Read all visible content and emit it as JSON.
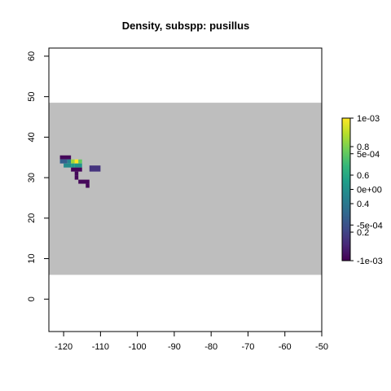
{
  "chart_data": {
    "type": "heatmap",
    "title": "Density, subspp: pusillus",
    "xlabel": "",
    "ylabel": "",
    "xlim": [
      -124,
      -50
    ],
    "ylim": [
      -8,
      62
    ],
    "x_ticks": [
      -120,
      -110,
      -100,
      -90,
      -80,
      -70,
      -60,
      -50
    ],
    "y_ticks": [
      0,
      10,
      20,
      30,
      40,
      50,
      60
    ],
    "x_tick_labels": [
      "-120",
      "-110",
      "-100",
      "-90",
      "-80",
      "-70",
      "-60",
      "-50"
    ],
    "y_tick_labels": [
      "0",
      "10",
      "20",
      "30",
      "40",
      "50",
      "60"
    ],
    "background_region": {
      "x": [
        -124,
        -50
      ],
      "y": [
        6,
        48.5
      ],
      "color": "#bebebe"
    },
    "grid": false,
    "colorscale": "viridis",
    "legend": {
      "position": "right",
      "ticks_left": [
        {
          "value": 0.2,
          "label": "0.2"
        },
        {
          "value": 0.4,
          "label": "0.4"
        },
        {
          "value": 0.6,
          "label": "0.6"
        },
        {
          "value": 0.8,
          "label": "0.8"
        }
      ],
      "ticks_right": [
        {
          "value": -0.001,
          "label": "-1e-03"
        },
        {
          "value": -0.0005,
          "label": "-5e-04"
        },
        {
          "value": 0.0,
          "label": "0e+00"
        },
        {
          "value": 0.0005,
          "label": "5e-04"
        },
        {
          "value": 0.001,
          "label": "1e-03"
        }
      ]
    },
    "cells": [
      {
        "x0": -121,
        "x1": -118,
        "y0": 34.5,
        "y1": 35.5,
        "value": 0.02
      },
      {
        "x0": -121,
        "x1": -119,
        "y0": 33.5,
        "y1": 34.5,
        "value": 0.3
      },
      {
        "x0": -119,
        "x1": -118,
        "y0": 33.5,
        "y1": 34.5,
        "value": 0.45
      },
      {
        "x0": -118,
        "x1": -117,
        "y0": 33.5,
        "y1": 34.5,
        "value": 0.85
      },
      {
        "x0": -117,
        "x1": -116,
        "y0": 33.5,
        "y1": 34.5,
        "value": 1.0
      },
      {
        "x0": -116,
        "x1": -115,
        "y0": 33.5,
        "y1": 34.5,
        "value": 0.75
      },
      {
        "x0": -120,
        "x1": -118,
        "y0": 32.5,
        "y1": 33.5,
        "value": 0.48
      },
      {
        "x0": -118,
        "x1": -117,
        "y0": 32.5,
        "y1": 33.5,
        "value": 0.55
      },
      {
        "x0": -117,
        "x1": -115,
        "y0": 32.5,
        "y1": 33.5,
        "value": 0.52
      },
      {
        "x0": -118,
        "x1": -115,
        "y0": 31.5,
        "y1": 32.5,
        "value": 0.02
      },
      {
        "x0": -117,
        "x1": -116,
        "y0": 30.5,
        "y1": 31.5,
        "value": 0.02
      },
      {
        "x0": -117,
        "x1": -116,
        "y0": 29.5,
        "y1": 30.5,
        "value": 0.02
      },
      {
        "x0": -116,
        "x1": -113,
        "y0": 28.5,
        "y1": 29.5,
        "value": 0.02
      },
      {
        "x0": -114,
        "x1": -113,
        "y0": 27.5,
        "y1": 28.5,
        "value": 0.02
      },
      {
        "x0": -113,
        "x1": -110,
        "y0": 31.5,
        "y1": 33.0,
        "value": 0.15
      }
    ]
  }
}
